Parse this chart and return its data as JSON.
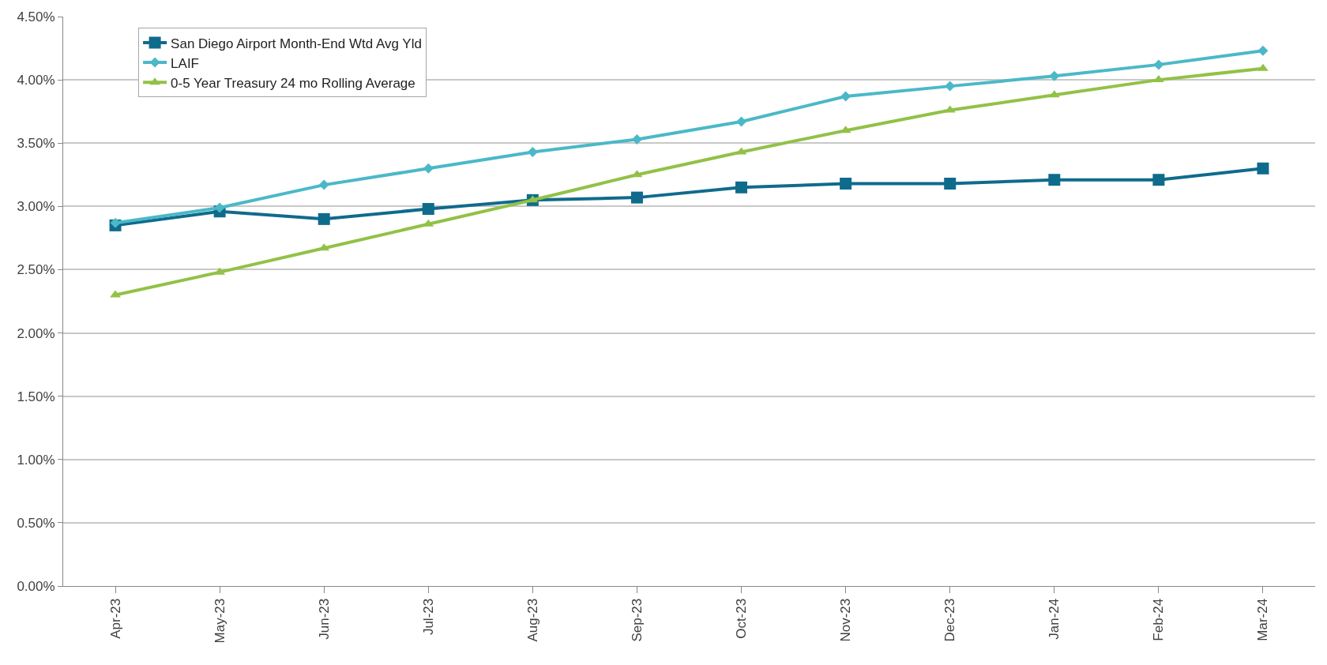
{
  "chart_data": {
    "type": "line",
    "categories": [
      "Apr-23",
      "May-23",
      "Jun-23",
      "Jul-23",
      "Aug-23",
      "Sep-23",
      "Oct-23",
      "Nov-23",
      "Dec-23",
      "Jan-24",
      "Feb-24",
      "Mar-24"
    ],
    "series": [
      {
        "name": "San Diego Airport Month-End Wtd Avg Yld",
        "color": "#0f6b8c",
        "marker": "square",
        "values": [
          2.85,
          2.96,
          2.9,
          2.98,
          3.05,
          3.07,
          3.15,
          3.18,
          3.18,
          3.21,
          3.21,
          3.3
        ]
      },
      {
        "name": "LAIF",
        "color": "#4bb8c8",
        "marker": "diamond",
        "values": [
          2.87,
          2.99,
          3.17,
          3.3,
          3.43,
          3.53,
          3.67,
          3.87,
          3.95,
          4.03,
          4.12,
          4.23
        ]
      },
      {
        "name": "0-5 Year Treasury 24 mo Rolling Average",
        "color": "#92c147",
        "marker": "triangle",
        "values": [
          2.3,
          2.48,
          2.67,
          2.86,
          3.05,
          3.25,
          3.43,
          3.6,
          3.76,
          3.88,
          4.0,
          4.09
        ]
      }
    ],
    "ylim": [
      0,
      4.5
    ],
    "yticks": [
      {
        "value": 0,
        "label": "0.00%"
      },
      {
        "value": 0.5,
        "label": "0.50%"
      },
      {
        "value": 1,
        "label": "1.00%"
      },
      {
        "value": 1.5,
        "label": "1.50%"
      },
      {
        "value": 2,
        "label": "2.00%"
      },
      {
        "value": 2.5,
        "label": "2.50%"
      },
      {
        "value": 3,
        "label": "3.00%"
      },
      {
        "value": 3.5,
        "label": "3.50%"
      },
      {
        "value": 4,
        "label": "4.00%"
      },
      {
        "value": 4.5,
        "label": "4.50%"
      }
    ],
    "grid": "y",
    "legend": "top left",
    "line_style": "solid"
  }
}
